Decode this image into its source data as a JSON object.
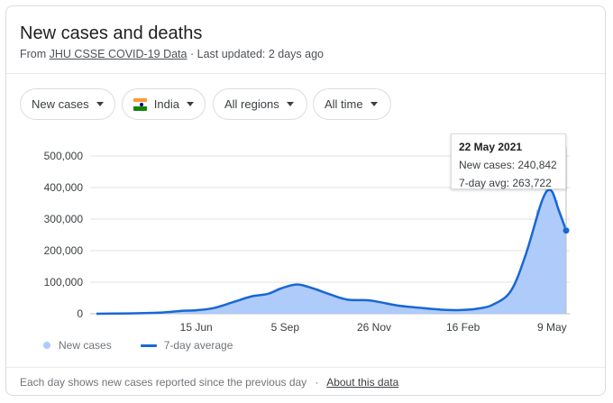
{
  "header": {
    "title": "New cases and deaths",
    "source_prefix": "From",
    "source_link": "JHU CSSE COVID-19 Data",
    "source_sep": "·",
    "last_updated": "Last updated: 2 days ago"
  },
  "filters": {
    "metric": "New cases",
    "country": "India",
    "region": "All regions",
    "time": "All time"
  },
  "tooltip": {
    "date": "22 May 2021",
    "new_cases": "New cases: 240,842",
    "avg": "7-day avg: 263,722"
  },
  "legend": {
    "bars": "New cases",
    "line": "7-day average"
  },
  "footer": {
    "note": "Each day shows new cases reported since the previous day",
    "sep": "·",
    "link": "About this data"
  },
  "colors": {
    "bars": "#aecbfa",
    "line": "#1967d2",
    "grid": "#e0e0e0"
  },
  "chart_data": {
    "type": "area",
    "y_ticks": [
      "500,000",
      "400,000",
      "300,000",
      "200,000",
      "100,000",
      "0"
    ],
    "y_tick_values": [
      500000,
      400000,
      300000,
      200000,
      100000,
      0
    ],
    "x_ticks": [
      "15 Jun",
      "5 Sep",
      "26 Nov",
      "16 Feb",
      "9 May"
    ],
    "ylim": [
      0,
      500000
    ],
    "series": [
      {
        "name": "New cases"
      },
      {
        "name": "7-day average"
      }
    ],
    "points": [
      {
        "date": "2020-03-15",
        "value": 0
      },
      {
        "date": "2020-04-15",
        "value": 1200
      },
      {
        "date": "2020-05-15",
        "value": 4000
      },
      {
        "date": "2020-06-01",
        "value": 9000
      },
      {
        "date": "2020-06-15",
        "value": 11000
      },
      {
        "date": "2020-07-01",
        "value": 18000
      },
      {
        "date": "2020-07-20",
        "value": 38000
      },
      {
        "date": "2020-08-05",
        "value": 55000
      },
      {
        "date": "2020-08-20",
        "value": 63000
      },
      {
        "date": "2020-09-01",
        "value": 80000
      },
      {
        "date": "2020-09-16",
        "value": 93000
      },
      {
        "date": "2020-10-01",
        "value": 80000
      },
      {
        "date": "2020-10-15",
        "value": 63000
      },
      {
        "date": "2020-11-01",
        "value": 45000
      },
      {
        "date": "2020-11-20",
        "value": 43000
      },
      {
        "date": "2020-12-01",
        "value": 37000
      },
      {
        "date": "2020-12-20",
        "value": 25000
      },
      {
        "date": "2021-01-10",
        "value": 18000
      },
      {
        "date": "2021-02-01",
        "value": 12000
      },
      {
        "date": "2021-02-16",
        "value": 12000
      },
      {
        "date": "2021-03-01",
        "value": 16000
      },
      {
        "date": "2021-03-15",
        "value": 28000
      },
      {
        "date": "2021-04-01",
        "value": 72000
      },
      {
        "date": "2021-04-15",
        "value": 190000
      },
      {
        "date": "2021-04-30",
        "value": 360000
      },
      {
        "date": "2021-05-08",
        "value": 391000
      },
      {
        "date": "2021-05-15",
        "value": 330000
      },
      {
        "date": "2021-05-22",
        "value": 263722
      }
    ],
    "selected": {
      "date": "2021-05-22",
      "new_cases": 240842,
      "avg": 263722
    }
  }
}
